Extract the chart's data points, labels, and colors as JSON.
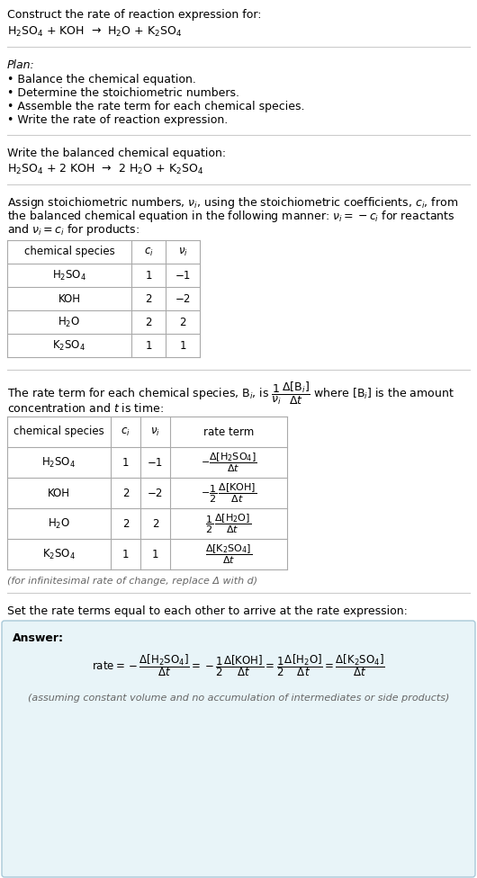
{
  "bg_color": "#ffffff",
  "text_color": "#000000",
  "title_line1": "Construct the rate of reaction expression for:",
  "reaction_unbalanced": "H$_2$SO$_4$ + KOH  →  H$_2$O + K$_2$SO$_4$",
  "plan_header": "Plan:",
  "plan_items": [
    "• Balance the chemical equation.",
    "• Determine the stoichiometric numbers.",
    "• Assemble the rate term for each chemical species.",
    "• Write the rate of reaction expression."
  ],
  "balanced_header": "Write the balanced chemical equation:",
  "reaction_balanced": "H$_2$SO$_4$ + 2 KOH  →  2 H$_2$O + K$_2$SO$_4$",
  "stoich_intro_lines": [
    "Assign stoichiometric numbers, $\\nu_i$, using the stoichiometric coefficients, $c_i$, from",
    "the balanced chemical equation in the following manner: $\\nu_i = -c_i$ for reactants",
    "and $\\nu_i = c_i$ for products:"
  ],
  "table1_headers": [
    "chemical species",
    "$c_i$",
    "$\\nu_i$"
  ],
  "table1_rows": [
    [
      "H$_2$SO$_4$",
      "1",
      "−1"
    ],
    [
      "KOH",
      "2",
      "−2"
    ],
    [
      "H$_2$O",
      "2",
      "2"
    ],
    [
      "K$_2$SO$_4$",
      "1",
      "1"
    ]
  ],
  "rate_intro_line1": "The rate term for each chemical species, B$_i$, is $\\dfrac{1}{\\nu_i}\\dfrac{\\Delta[\\mathrm{B}_i]}{\\Delta t}$ where [B$_i$] is the amount",
  "rate_intro_line2": "concentration and $t$ is time:",
  "table2_headers": [
    "chemical species",
    "$c_i$",
    "$\\nu_i$",
    "rate term"
  ],
  "table2_rows": [
    [
      "H$_2$SO$_4$",
      "1",
      "−1",
      "$-\\dfrac{\\Delta[\\mathrm{H_2SO_4}]}{\\Delta t}$"
    ],
    [
      "KOH",
      "2",
      "−2",
      "$-\\dfrac{1}{2}\\,\\dfrac{\\Delta[\\mathrm{KOH}]}{\\Delta t}$"
    ],
    [
      "H$_2$O",
      "2",
      "2",
      "$\\dfrac{1}{2}\\,\\dfrac{\\Delta[\\mathrm{H_2O}]}{\\Delta t}$"
    ],
    [
      "K$_2$SO$_4$",
      "1",
      "1",
      "$\\dfrac{\\Delta[\\mathrm{K_2SO_4}]}{\\Delta t}$"
    ]
  ],
  "infinitesimal_note": "(for infinitesimal rate of change, replace Δ with d)",
  "set_rate_text": "Set the rate terms equal to each other to arrive at the rate expression:",
  "answer_box_color": "#e8f4f8",
  "answer_box_border": "#a8c8d8",
  "answer_label": "Answer:",
  "answer_rate_expr": "$\\mathrm{rate} = -\\dfrac{\\Delta[\\mathrm{H_2SO_4}]}{\\Delta t} = -\\dfrac{1}{2}\\dfrac{\\Delta[\\mathrm{KOH}]}{\\Delta t} = \\dfrac{1}{2}\\dfrac{\\Delta[\\mathrm{H_2O}]}{\\Delta t} = \\dfrac{\\Delta[\\mathrm{K_2SO_4}]}{\\Delta t}$",
  "answer_footnote": "(assuming constant volume and no accumulation of intermediates or side products)"
}
